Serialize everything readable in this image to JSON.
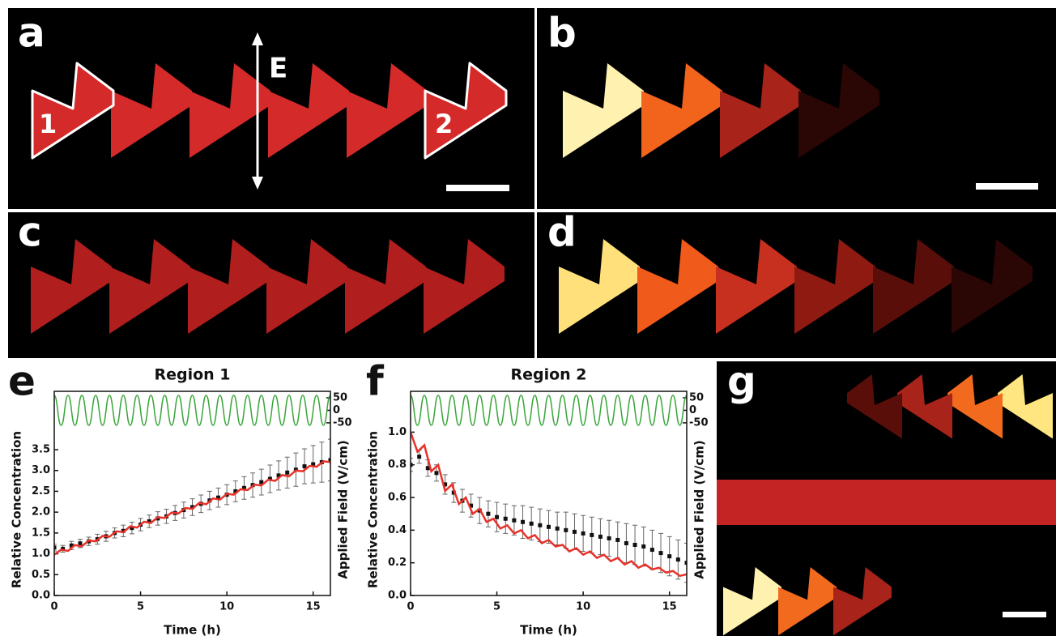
{
  "panel_labels": [
    "a",
    "b",
    "c",
    "d",
    "e",
    "f",
    "g"
  ],
  "annotations": {
    "field": "E",
    "region_1": "1",
    "region_2": "2"
  },
  "chart_data": [
    {
      "type": "line",
      "title": "Region 1",
      "x_label": "Time (h)",
      "y_label": "Relative Concentration",
      "y2_label": "Applied Field (V/cm)",
      "xlim": [
        0,
        16
      ],
      "xticks": [
        0,
        5,
        10,
        15
      ],
      "ylim": [
        0,
        4.9
      ],
      "yticks": [
        {
          "value": 0,
          "label": "0.0"
        },
        0.5,
        {
          "value": 1,
          "label": "1.0"
        },
        1.5,
        {
          "value": 2,
          "label": "2.0"
        },
        2.5,
        {
          "value": 3,
          "label": "3.0"
        },
        3.5
      ],
      "y2lim": [
        -740,
        76
      ],
      "y2ticks": [
        50,
        0,
        -50
      ],
      "series": [
        {
          "color": "#111111",
          "style": "points",
          "x": [
            0,
            0.5,
            1,
            1.5,
            2,
            2.5,
            3,
            3.5,
            4,
            4.5,
            5,
            5.5,
            6,
            6.5,
            7,
            7.5,
            8,
            8.5,
            9,
            9.5,
            10,
            10.5,
            11,
            11.5,
            12,
            12.5,
            13,
            13.5,
            14,
            14.5,
            15,
            15.5,
            16
          ],
          "values": [
            1.15,
            1.12,
            1.2,
            1.25,
            1.3,
            1.35,
            1.42,
            1.5,
            1.55,
            1.62,
            1.7,
            1.78,
            1.85,
            1.9,
            1.98,
            2.05,
            2.12,
            2.2,
            2.28,
            2.35,
            2.42,
            2.5,
            2.58,
            2.65,
            2.72,
            2.8,
            2.88,
            2.95,
            3.02,
            3.1,
            3.15,
            3.2,
            3.25
          ],
          "errors": [
            0.08,
            0.08,
            0.1,
            0.1,
            0.1,
            0.12,
            0.12,
            0.12,
            0.14,
            0.14,
            0.15,
            0.15,
            0.16,
            0.17,
            0.18,
            0.19,
            0.2,
            0.21,
            0.22,
            0.23,
            0.24,
            0.25,
            0.27,
            0.29,
            0.31,
            0.33,
            0.35,
            0.37,
            0.4,
            0.42,
            0.45,
            0.48,
            0.5
          ]
        },
        {
          "color": "#e8322a",
          "style": "line",
          "x": [
            0,
            0.4,
            0.8,
            1.2,
            1.6,
            2,
            2.4,
            2.8,
            3.2,
            3.6,
            4,
            4.4,
            4.8,
            5.2,
            5.6,
            6,
            6.4,
            6.8,
            7.2,
            7.6,
            8,
            8.4,
            8.8,
            9.2,
            9.6,
            10,
            10.4,
            10.8,
            11.2,
            11.6,
            12,
            12.4,
            12.8,
            13.2,
            13.6,
            14,
            14.4,
            14.8,
            15.2,
            15.6,
            16
          ],
          "values": [
            0.98,
            1.1,
            1.07,
            1.21,
            1.18,
            1.32,
            1.3,
            1.43,
            1.41,
            1.54,
            1.52,
            1.66,
            1.63,
            1.77,
            1.74,
            1.88,
            1.86,
            1.99,
            1.97,
            2.1,
            2.08,
            2.22,
            2.19,
            2.33,
            2.3,
            2.44,
            2.42,
            2.55,
            2.53,
            2.66,
            2.64,
            2.78,
            2.75,
            2.89,
            2.86,
            3.0,
            2.98,
            3.11,
            3.09,
            3.22,
            3.2
          ]
        },
        {
          "color": "#3aa63a",
          "style": "wave",
          "axis": "y2",
          "x": [
            0,
            0.4,
            0.8,
            1.2,
            1.6,
            2,
            2.4,
            2.8,
            3.2,
            3.6,
            4,
            4.4,
            4.8,
            5.2,
            5.6,
            6,
            6.4,
            6.8,
            7.2,
            7.6,
            8,
            8.4,
            8.8,
            9.2,
            9.6,
            10,
            10.4,
            10.8,
            11.2,
            11.6,
            12,
            12.4,
            12.8,
            13.2,
            13.6,
            14,
            14.4,
            14.8,
            15.2,
            15.6,
            16
          ],
          "values": [
            60,
            -60,
            60,
            -60,
            60,
            -60,
            60,
            -60,
            60,
            -60,
            60,
            -60,
            60,
            -60,
            60,
            -60,
            60,
            -60,
            60,
            -60,
            60,
            -60,
            60,
            -60,
            60,
            -60,
            60,
            -60,
            60,
            -60,
            60,
            -60,
            60,
            -60,
            60,
            -60,
            60,
            -60,
            60,
            -60,
            60
          ]
        }
      ]
    },
    {
      "type": "line",
      "title": "Region 2",
      "x_label": "Time (h)",
      "y_label": "Relative Concentration",
      "y2_label": "Applied Field (V/cm)",
      "xlim": [
        0,
        16
      ],
      "xticks": [
        0,
        5,
        10,
        15
      ],
      "ylim": [
        0,
        1.25
      ],
      "yticks": [
        {
          "value": 0,
          "label": "0.0"
        },
        0.2,
        0.4,
        0.6,
        0.8,
        {
          "value": 1,
          "label": "1.0"
        }
      ],
      "y2lim": [
        -740,
        76
      ],
      "y2ticks": [
        50,
        0,
        -50
      ],
      "series": [
        {
          "color": "#111111",
          "style": "points",
          "x": [
            0,
            0.5,
            1,
            1.5,
            2,
            2.5,
            3,
            3.5,
            4,
            4.5,
            5,
            5.5,
            6,
            6.5,
            7,
            7.5,
            8,
            8.5,
            9,
            9.5,
            10,
            10.5,
            11,
            11.5,
            12,
            12.5,
            13,
            13.5,
            14,
            14.5,
            15,
            15.5,
            16
          ],
          "values": [
            0.8,
            0.85,
            0.78,
            0.75,
            0.68,
            0.63,
            0.58,
            0.55,
            0.52,
            0.5,
            0.48,
            0.47,
            0.46,
            0.45,
            0.44,
            0.43,
            0.42,
            0.41,
            0.4,
            0.39,
            0.38,
            0.37,
            0.36,
            0.35,
            0.34,
            0.32,
            0.31,
            0.3,
            0.28,
            0.26,
            0.24,
            0.22,
            0.2
          ],
          "errors": [
            0.04,
            0.04,
            0.05,
            0.05,
            0.06,
            0.06,
            0.07,
            0.07,
            0.08,
            0.08,
            0.09,
            0.09,
            0.09,
            0.1,
            0.1,
            0.1,
            0.1,
            0.1,
            0.11,
            0.11,
            0.11,
            0.11,
            0.11,
            0.11,
            0.11,
            0.12,
            0.12,
            0.12,
            0.12,
            0.12,
            0.12,
            0.12,
            0.12
          ]
        },
        {
          "color": "#e8322a",
          "style": "line",
          "x": [
            0,
            0.4,
            0.8,
            1.2,
            1.6,
            2,
            2.4,
            2.8,
            3.2,
            3.6,
            4,
            4.4,
            4.8,
            5.2,
            5.6,
            6,
            6.4,
            6.8,
            7.2,
            7.6,
            8,
            8.4,
            8.8,
            9.2,
            9.6,
            10,
            10.4,
            10.8,
            11.2,
            11.6,
            12,
            12.4,
            12.8,
            13.2,
            13.6,
            14,
            14.4,
            14.8,
            15.2,
            15.6,
            16
          ],
          "values": [
            1.0,
            0.88,
            0.92,
            0.76,
            0.8,
            0.64,
            0.68,
            0.56,
            0.6,
            0.5,
            0.53,
            0.45,
            0.47,
            0.41,
            0.43,
            0.38,
            0.4,
            0.35,
            0.37,
            0.32,
            0.34,
            0.3,
            0.31,
            0.27,
            0.29,
            0.25,
            0.27,
            0.23,
            0.25,
            0.21,
            0.23,
            0.19,
            0.21,
            0.17,
            0.19,
            0.16,
            0.17,
            0.14,
            0.15,
            0.12,
            0.13
          ]
        },
        {
          "color": "#3aa63a",
          "style": "wave",
          "axis": "y2",
          "x": [
            0,
            0.4,
            0.8,
            1.2,
            1.6,
            2,
            2.4,
            2.8,
            3.2,
            3.6,
            4,
            4.4,
            4.8,
            5.2,
            5.6,
            6,
            6.4,
            6.8,
            7.2,
            7.6,
            8,
            8.4,
            8.8,
            9.2,
            9.6,
            10,
            10.4,
            10.8,
            11.2,
            11.6,
            12,
            12.4,
            12.8,
            13.2,
            13.6,
            14,
            14.4,
            14.8,
            15.2,
            15.6,
            16
          ],
          "values": [
            60,
            -60,
            60,
            -60,
            60,
            -60,
            60,
            -60,
            60,
            -60,
            60,
            -60,
            60,
            -60,
            60,
            -60,
            60,
            -60,
            60,
            -60,
            60,
            -60,
            60,
            -60,
            60,
            -60,
            60,
            -60,
            60,
            -60,
            60,
            -60,
            60,
            -60,
            60,
            -60,
            60,
            -60,
            60,
            -60,
            60
          ]
        }
      ]
    }
  ]
}
